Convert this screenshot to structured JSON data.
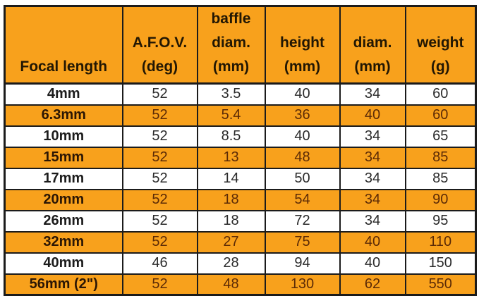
{
  "style": {
    "orange_fill": "#f8a11c",
    "grid_border": "#1b1b1b",
    "text_on_white": "#2a2a2a",
    "text_on_orange": "#5b2a06",
    "header_text": "#221703",
    "page_background": "#ffffff"
  },
  "chart_data": {
    "type": "table",
    "columns": [
      "Focal length",
      "A.F.O.V. (deg)",
      "baffle diam. (mm)",
      "height (mm)",
      "diam. (mm)",
      "weight (g)"
    ],
    "column_header_lines": [
      "Focal length",
      "A.F.O.V.\n(deg)",
      "baffle\ndiam.\n(mm)",
      "height\n(mm)",
      "diam.\n(mm)",
      "weight\n(g)"
    ],
    "column_ids": [
      "focal-length",
      "afov-deg",
      "baffle-diam-mm",
      "height-mm",
      "diam-mm",
      "weight-g"
    ],
    "rows": [
      [
        "4mm",
        52,
        3.5,
        40,
        34,
        60
      ],
      [
        "6.3mm",
        52,
        5.4,
        36,
        40,
        60
      ],
      [
        "10mm",
        52,
        8.5,
        40,
        34,
        65
      ],
      [
        "15mm",
        52,
        13,
        48,
        34,
        85
      ],
      [
        "17mm",
        52,
        14,
        50,
        34,
        85
      ],
      [
        "20mm",
        52,
        18,
        54,
        34,
        90
      ],
      [
        "26mm",
        52,
        18,
        72,
        34,
        95
      ],
      [
        "32mm",
        52,
        27,
        75,
        40,
        110
      ],
      [
        "40mm",
        46,
        28,
        94,
        40,
        150
      ],
      [
        "56mm (2\")",
        52,
        48,
        130,
        62,
        550
      ]
    ],
    "row_striping": {
      "even_row_fill": "#ffffff",
      "odd_row_fill": "#f8a11c"
    },
    "grid": true,
    "legend_position": "none",
    "title": ""
  }
}
